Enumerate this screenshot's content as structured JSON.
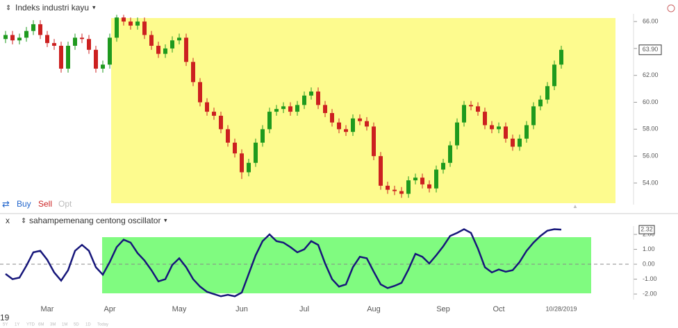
{
  "ui": {
    "instrument": "Indeks industri kayu",
    "buy": "Buy",
    "sell": "Sell",
    "opt": "Opt",
    "close_x": "x",
    "indicator": "sahampemenang centong oscillator",
    "year_fragment": "19",
    "ranges": [
      "5Y",
      "1Y",
      "YTD",
      "6M",
      "3M",
      "1M",
      "5D",
      "1D",
      "Today"
    ]
  },
  "chart_data": [
    {
      "type": "candlestick",
      "up_color": "#1e9a1e",
      "down_color": "#cc2020",
      "open": [
        64.7,
        65.0,
        64.6,
        64.8,
        65.3,
        65.8,
        65.0,
        64.4,
        64.2,
        62.5,
        64.2,
        64.8,
        64.7,
        63.9,
        62.5,
        62.8,
        64.8,
        66.3,
        66.0,
        65.7,
        66.0,
        65.0,
        64.2,
        63.6,
        64.0,
        64.6,
        64.8,
        63.0,
        61.5,
        60.0,
        59.3,
        59.0,
        58.0,
        57.0,
        56.2,
        54.8,
        55.5,
        57.0,
        58.0,
        59.3,
        59.5,
        59.7,
        59.3,
        59.8,
        60.5,
        60.8,
        59.8,
        59.2,
        58.5,
        58.0,
        57.8,
        58.8,
        58.6,
        58.2,
        56.0,
        53.8,
        53.5,
        53.4,
        53.2,
        54.2,
        54.4,
        53.9,
        53.6,
        55.0,
        55.5,
        56.8,
        58.5,
        59.8,
        59.7,
        59.3,
        58.3,
        58.0,
        58.2,
        57.3,
        56.7,
        57.3,
        58.3,
        59.7,
        60.2,
        61.2,
        62.8
      ],
      "high": [
        65.3,
        65.3,
        65.1,
        65.6,
        66.1,
        66.1,
        65.3,
        64.7,
        64.5,
        64.5,
        65.1,
        65.1,
        65.0,
        64.2,
        63.1,
        65.1,
        66.5,
        66.5,
        66.3,
        66.3,
        66.3,
        65.3,
        64.5,
        64.3,
        64.9,
        65.1,
        65.1,
        63.3,
        61.8,
        60.3,
        59.6,
        59.3,
        58.3,
        57.3,
        56.5,
        55.8,
        57.3,
        58.3,
        59.6,
        59.8,
        60.0,
        60.0,
        60.1,
        60.8,
        61.1,
        61.1,
        60.1,
        59.5,
        58.8,
        58.3,
        59.1,
        59.1,
        58.9,
        58.5,
        56.3,
        54.1,
        53.8,
        53.7,
        54.5,
        54.7,
        54.7,
        54.2,
        55.3,
        55.8,
        57.1,
        58.8,
        60.1,
        60.1,
        60.0,
        59.6,
        58.6,
        58.5,
        58.5,
        57.6,
        57.6,
        58.6,
        60.0,
        60.5,
        61.5,
        63.1,
        64.2
      ],
      "low": [
        64.4,
        64.3,
        64.3,
        64.5,
        65.0,
        64.7,
        64.1,
        63.9,
        62.2,
        62.2,
        63.9,
        64.4,
        63.6,
        62.2,
        62.2,
        62.5,
        64.5,
        65.7,
        65.4,
        65.4,
        64.7,
        63.9,
        63.3,
        63.3,
        63.7,
        64.3,
        62.7,
        61.2,
        59.7,
        59.0,
        58.7,
        57.7,
        56.7,
        55.9,
        54.3,
        54.5,
        55.2,
        56.7,
        57.7,
        59.0,
        59.2,
        59.0,
        59.0,
        59.5,
        60.2,
        59.5,
        58.9,
        58.2,
        57.7,
        57.5,
        57.5,
        58.3,
        57.9,
        55.7,
        53.5,
        53.2,
        53.1,
        52.9,
        52.9,
        53.9,
        53.6,
        53.3,
        53.3,
        54.7,
        55.2,
        56.5,
        58.2,
        59.4,
        59.0,
        58.0,
        57.7,
        57.7,
        57.0,
        56.4,
        56.4,
        57.0,
        58.0,
        59.4,
        59.9,
        60.9,
        62.5
      ],
      "close": [
        65.0,
        64.6,
        64.8,
        65.3,
        65.8,
        65.0,
        64.4,
        64.2,
        62.5,
        64.2,
        64.8,
        64.7,
        63.9,
        62.5,
        62.8,
        64.8,
        66.3,
        66.0,
        65.7,
        66.0,
        65.0,
        64.2,
        63.6,
        64.0,
        64.6,
        64.8,
        63.0,
        61.5,
        60.0,
        59.3,
        59.0,
        58.0,
        57.0,
        56.2,
        54.8,
        55.5,
        57.0,
        58.0,
        59.3,
        59.5,
        59.7,
        59.3,
        59.8,
        60.5,
        60.8,
        59.8,
        59.2,
        58.5,
        58.0,
        57.8,
        58.8,
        58.6,
        58.2,
        56.0,
        53.8,
        53.5,
        53.4,
        53.2,
        54.2,
        54.4,
        53.9,
        53.6,
        55.0,
        55.5,
        56.8,
        58.5,
        59.8,
        59.7,
        59.3,
        58.3,
        58.0,
        58.2,
        57.3,
        56.7,
        57.3,
        58.3,
        59.7,
        60.2,
        61.2,
        62.8,
        63.9
      ],
      "current_price": {
        "value": 63.9,
        "label": "63.90"
      },
      "ylim": [
        52.4,
        66.57
      ],
      "yticks": [
        {
          "value": 54,
          "label": "54.00"
        },
        {
          "value": 56,
          "label": "56.00"
        },
        {
          "value": 58,
          "label": "58.00"
        },
        {
          "value": 60,
          "label": "60.00"
        },
        {
          "value": 62,
          "label": "62.00"
        },
        {
          "value": 64,
          "label": "64.00"
        },
        {
          "value": 66,
          "label": "66.00"
        }
      ]
    },
    {
      "type": "line",
      "color": "#16167a",
      "categories": [
        null,
        null,
        null,
        null,
        null,
        null,
        "Mar",
        null,
        null,
        null,
        null,
        null,
        null,
        null,
        null,
        "Apr",
        null,
        null,
        null,
        null,
        null,
        null,
        null,
        null,
        null,
        "May",
        null,
        null,
        null,
        null,
        null,
        null,
        null,
        null,
        "Jun",
        null,
        null,
        null,
        null,
        null,
        null,
        null,
        null,
        "Jul",
        null,
        null,
        null,
        null,
        null,
        null,
        null,
        null,
        null,
        "Aug",
        null,
        null,
        null,
        null,
        null,
        null,
        null,
        null,
        null,
        "Sep",
        null,
        null,
        null,
        null,
        null,
        null,
        null,
        "Oct",
        null,
        null,
        null,
        null,
        null,
        null,
        null,
        null,
        "10/28/2019"
      ],
      "values": [
        -0.65,
        -1.0,
        -0.9,
        -0.1,
        0.8,
        0.9,
        0.3,
        -0.55,
        -1.1,
        -0.4,
        0.9,
        1.3,
        0.9,
        -0.2,
        -0.7,
        0.15,
        1.15,
        1.65,
        1.45,
        0.75,
        0.25,
        -0.4,
        -1.15,
        -1.0,
        -0.05,
        0.4,
        -0.2,
        -1.0,
        -1.5,
        -1.85,
        -2.0,
        -2.15,
        -2.05,
        -2.15,
        -1.9,
        -0.65,
        0.6,
        1.55,
        2.0,
        1.55,
        1.45,
        1.15,
        0.8,
        1.0,
        1.55,
        1.3,
        0.05,
        -1.0,
        -1.5,
        -1.35,
        -0.2,
        0.5,
        0.4,
        -0.5,
        -1.35,
        -1.6,
        -1.45,
        -1.25,
        -0.35,
        0.7,
        0.5,
        0.05,
        0.6,
        1.2,
        1.9,
        2.1,
        2.35,
        2.1,
        1.05,
        -0.2,
        -0.55,
        -0.35,
        -0.5,
        -0.4,
        0.15,
        0.9,
        1.45,
        1.9,
        2.25,
        2.35,
        2.32
      ],
      "ylim": [
        -2.37,
        2.56
      ],
      "yticks": [
        {
          "value": 2,
          "label": "2.00"
        },
        {
          "value": 1,
          "label": "1.00"
        },
        {
          "value": 0,
          "label": "0.00"
        },
        {
          "value": -1,
          "label": "-1.00"
        },
        {
          "value": -2,
          "label": "-2.00"
        }
      ]
    }
  ]
}
